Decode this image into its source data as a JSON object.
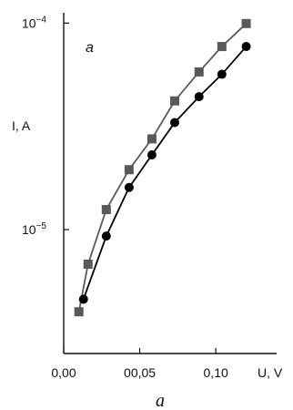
{
  "chart_data": {
    "type": "scatter",
    "panel_label": "a",
    "caption": "a",
    "xlabel": "U, V",
    "ylabel": "I, A",
    "x_ticks": [
      {
        "value": 0.0,
        "label": "0,00"
      },
      {
        "value": 0.05,
        "label": "00,05"
      },
      {
        "value": 0.1,
        "label": "0,10"
      }
    ],
    "y_ticks": [
      {
        "value": 1e-05,
        "label_base": "10",
        "label_exp": "−5"
      },
      {
        "value": 0.0001,
        "label_base": "10",
        "label_exp": "−4"
      }
    ],
    "xlim": [
      0.0,
      0.14
    ],
    "ylim_log10": [
      -5.6,
      -3.95
    ],
    "y_scale": "log",
    "grid": false,
    "series": [
      {
        "marker": "square",
        "color": "#595959",
        "points": [
          {
            "x": 0.01,
            "y": 4e-06
          },
          {
            "x": 0.016,
            "y": 6.8e-06
          },
          {
            "x": 0.028,
            "y": 1.25e-05
          },
          {
            "x": 0.043,
            "y": 1.95e-05
          },
          {
            "x": 0.058,
            "y": 2.75e-05
          },
          {
            "x": 0.073,
            "y": 4.2e-05
          },
          {
            "x": 0.089,
            "y": 5.8e-05
          },
          {
            "x": 0.104,
            "y": 7.7e-05
          },
          {
            "x": 0.12,
            "y": 9.95e-05
          }
        ]
      },
      {
        "marker": "circle",
        "color": "#000000",
        "points": [
          {
            "x": 0.013,
            "y": 4.6e-06
          },
          {
            "x": 0.028,
            "y": 9.3e-06
          },
          {
            "x": 0.043,
            "y": 1.6e-05
          },
          {
            "x": 0.058,
            "y": 2.3e-05
          },
          {
            "x": 0.073,
            "y": 3.3e-05
          },
          {
            "x": 0.089,
            "y": 4.4e-05
          },
          {
            "x": 0.104,
            "y": 5.65e-05
          },
          {
            "x": 0.12,
            "y": 7.7e-05
          }
        ]
      }
    ]
  }
}
